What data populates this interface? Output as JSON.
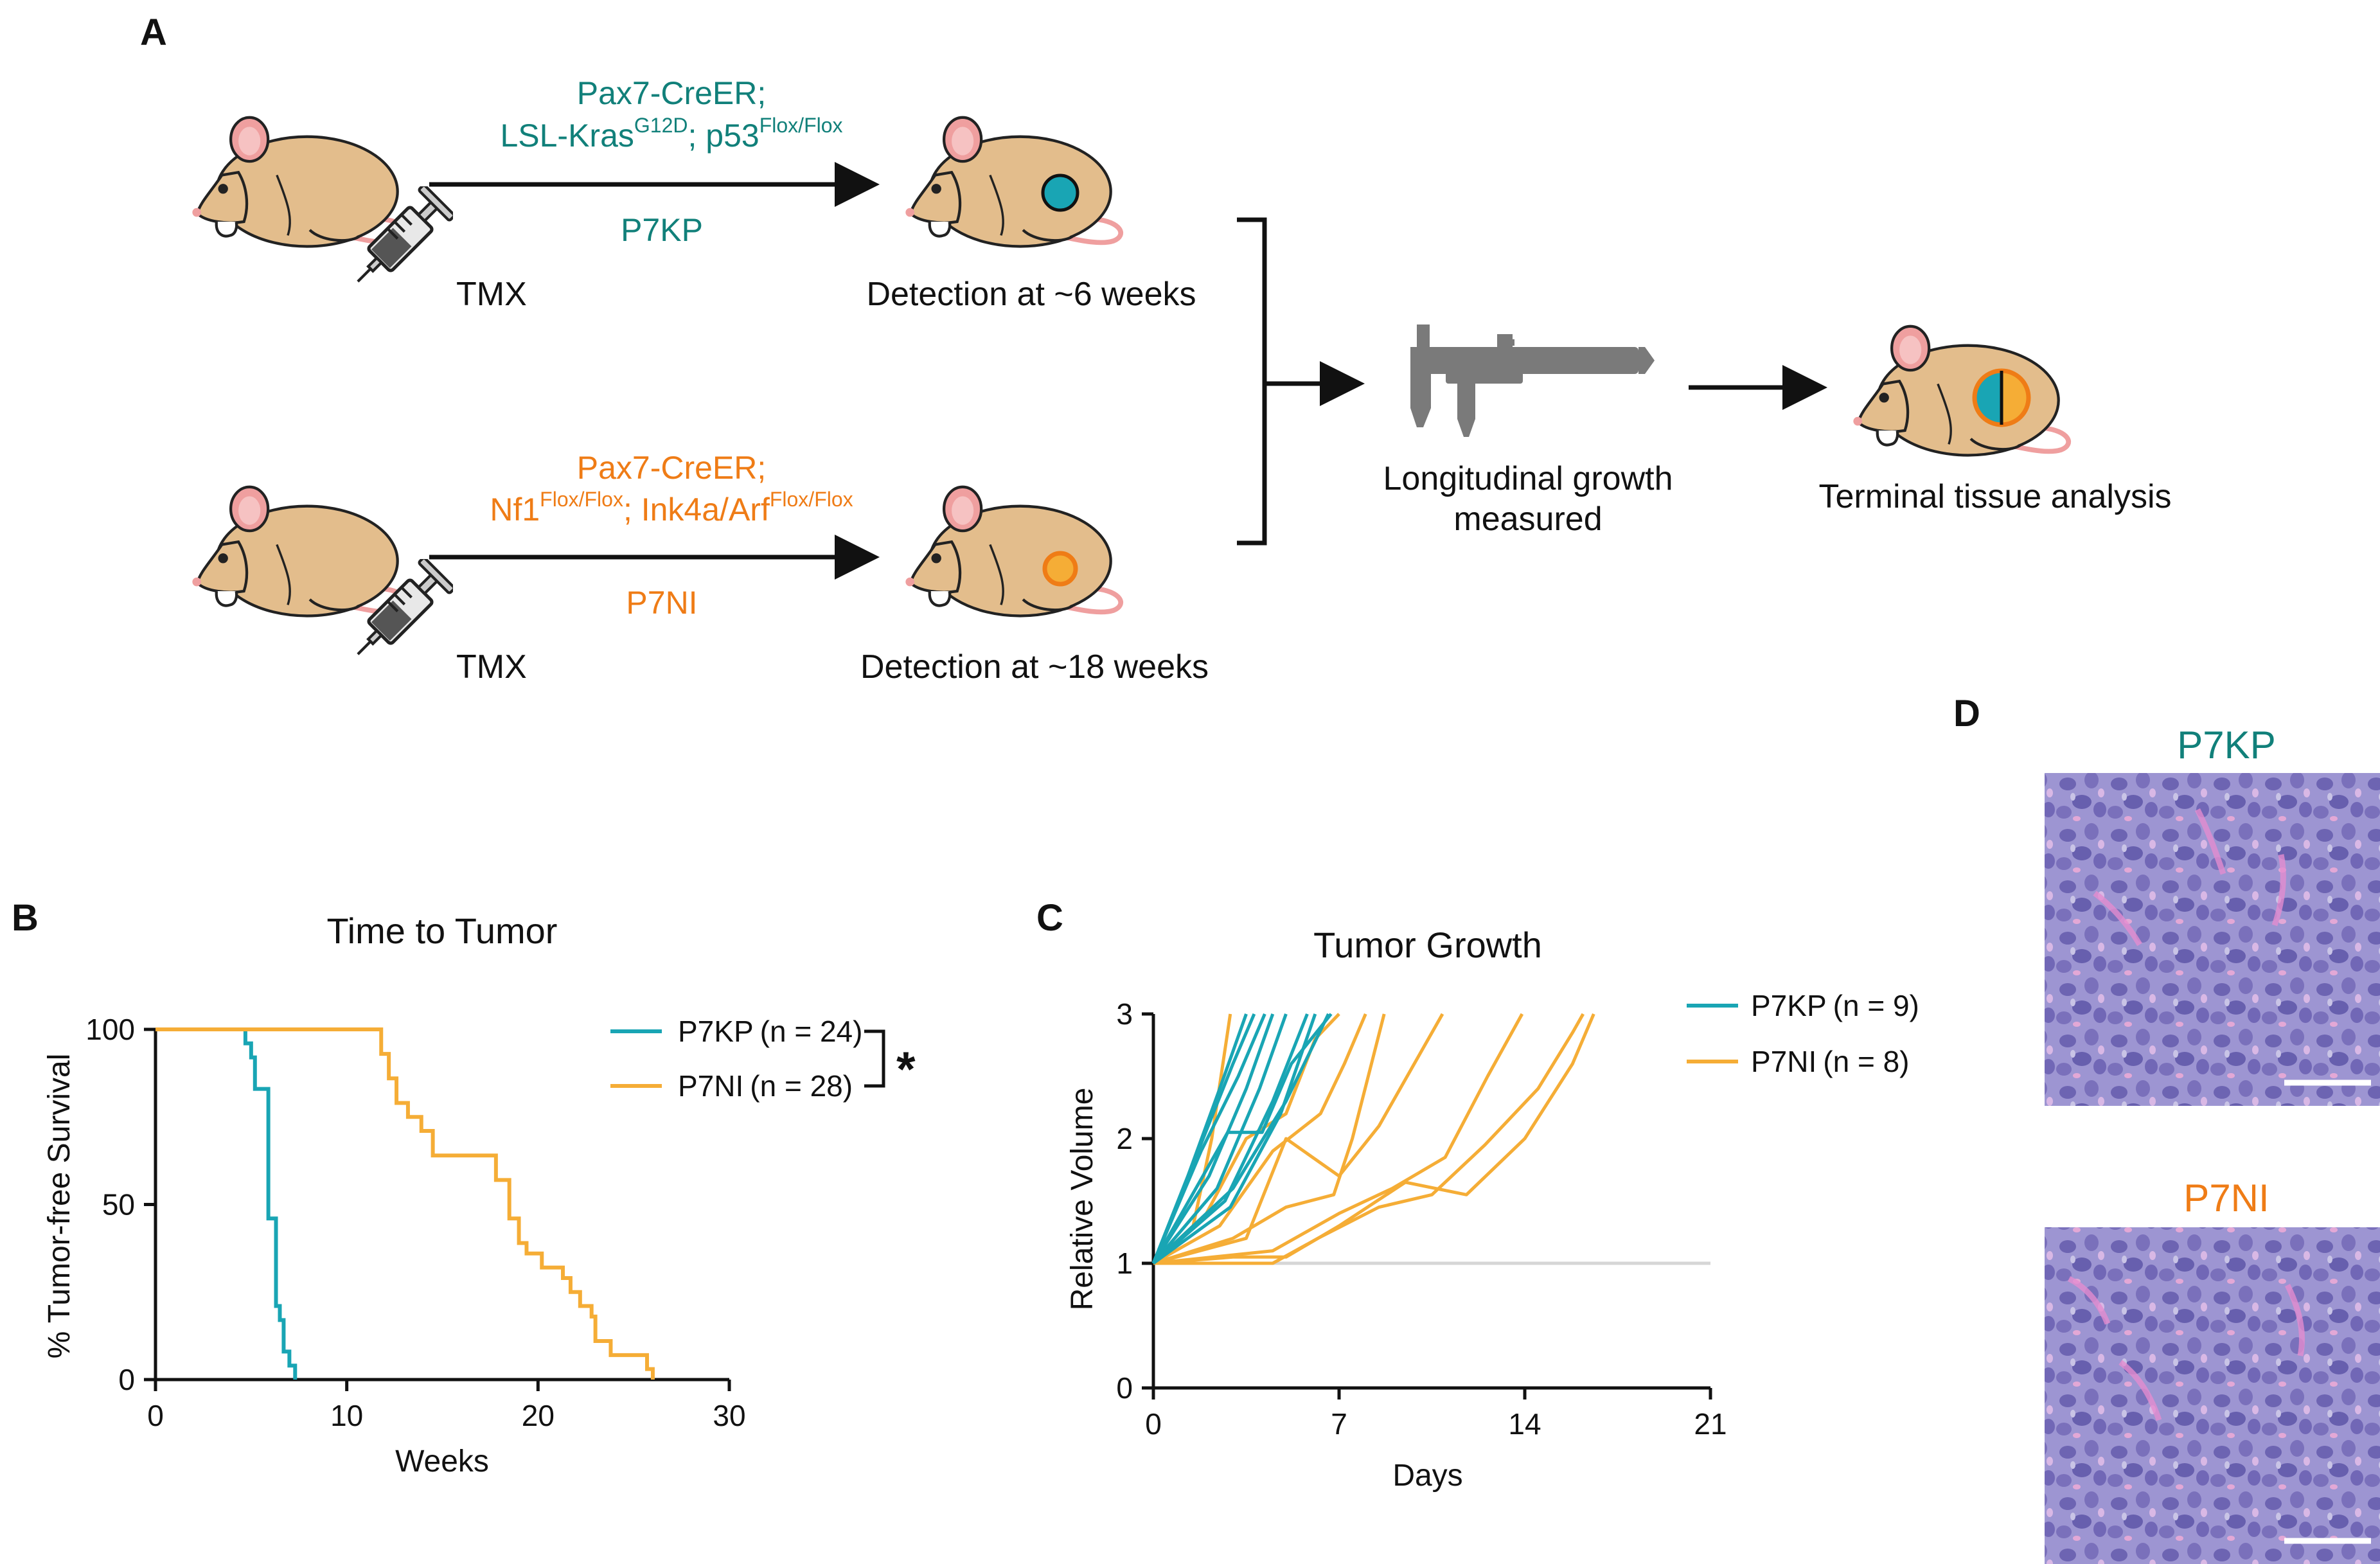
{
  "colors": {
    "p7kp": "#19a5b4",
    "p7kp_text": "#11807a",
    "p7ni": "#f5ad36",
    "p7ni_text": "#ef7c16",
    "mouse_body": "#e3bd8c",
    "mouse_pink": "#ef9f9f",
    "histology": "#8e88c9",
    "baseline": "#d6d6d6"
  },
  "panel_a": {
    "label": "A",
    "top_row": {
      "genotype_line1": "Pax7-CreER;",
      "genotype_line2_a": "LSL-Kras",
      "genotype_line2_sup1": "G12D",
      "genotype_line2_b": "; p53",
      "genotype_line2_sup2": "Flox/Flox",
      "model": "P7KP",
      "injection": "TMX",
      "detection": "Detection at ~6 weeks"
    },
    "bottom_row": {
      "genotype_line1": "Pax7-CreER;",
      "genotype_line2_a": "Nf1",
      "genotype_line2_sup1": "Flox/Flox",
      "genotype_line2_b": "; Ink4a/Arf",
      "genotype_line2_sup2": "Flox/Flox",
      "model": "P7NI",
      "injection": "TMX",
      "detection": "Detection at ~18 weeks"
    },
    "caliper_label_line1": "Longitudinal growth",
    "caliper_label_line2": "measured",
    "terminal_label": "Terminal tissue analysis",
    "icons": [
      "mouse-icon",
      "syringe-icon",
      "tumor-icon",
      "caliper-icon",
      "arrow-icon",
      "bracket-icon"
    ]
  },
  "chart_data": [
    {
      "panel": "B",
      "type": "line",
      "subtype": "kaplan-meier step",
      "title": "Time to Tumor",
      "xlabel": "Weeks",
      "ylabel": "% Tumor-free Survival",
      "xlim": [
        0,
        30
      ],
      "ylim": [
        0,
        100
      ],
      "xticks": [
        0,
        10,
        20,
        30
      ],
      "yticks": [
        0,
        50,
        100
      ],
      "significance": "*",
      "legend": "right",
      "series": [
        {
          "name": "P7KP",
          "n_label": "(n = 24)",
          "color": "#19a5b4",
          "times": [
            0,
            4.3,
            4.7,
            5.0,
            5.2,
            5.7,
            5.9,
            6.2,
            6.3,
            6.5,
            6.7,
            7.0,
            7.3
          ],
          "survival": [
            100,
            100,
            96,
            92,
            83,
            83,
            46,
            46,
            21,
            17,
            8,
            4,
            0
          ]
        },
        {
          "name": "P7NI",
          "n_label": "(n = 28)",
          "color": "#f5ad36",
          "times": [
            0,
            11.3,
            11.8,
            12.2,
            12.6,
            13.2,
            13.9,
            14.5,
            16.0,
            17.8,
            18.5,
            19.0,
            19.4,
            20.2,
            20.9,
            21.3,
            21.7,
            22.2,
            22.8,
            23.0,
            23.8,
            25.7,
            26.0
          ],
          "survival": [
            100,
            100,
            93,
            86,
            79,
            75,
            71,
            64,
            64,
            57,
            46,
            39,
            36,
            32,
            32,
            29,
            25,
            21,
            18,
            11,
            7,
            3,
            0
          ]
        }
      ]
    },
    {
      "panel": "C",
      "type": "line",
      "title": "Tumor Growth",
      "xlabel": "Days",
      "ylabel": "Relative Volume",
      "xlim": [
        0,
        21
      ],
      "ylim": [
        0,
        3
      ],
      "xticks": [
        0,
        7,
        14,
        21
      ],
      "yticks": [
        0,
        1,
        2,
        3
      ],
      "baseline": 1,
      "legend": "right",
      "series": [
        {
          "name": "P7KP",
          "n_label": "(n = 9)",
          "color": "#19a5b4",
          "lines": [
            [
              [
                0,
                1
              ],
              [
                1.3,
                1.7
              ],
              [
                2.5,
                2.4
              ],
              [
                3.5,
                3.0
              ]
            ],
            [
              [
                0,
                1
              ],
              [
                1.5,
                1.8
              ],
              [
                3,
                2.6
              ],
              [
                3.8,
                3.0
              ]
            ],
            [
              [
                0,
                1
              ],
              [
                1.8,
                1.9
              ],
              [
                3.2,
                2.5
              ],
              [
                4.2,
                3.0
              ]
            ],
            [
              [
                0,
                1
              ],
              [
                2.1,
                1.7
              ],
              [
                3.5,
                2.4
              ],
              [
                4.5,
                3.0
              ]
            ],
            [
              [
                0,
                1
              ],
              [
                2.4,
                1.6
              ],
              [
                4,
                2.4
              ],
              [
                5.0,
                3.0
              ]
            ],
            [
              [
                0,
                1
              ],
              [
                2.7,
                1.5
              ],
              [
                4.5,
                2.3
              ],
              [
                5.8,
                3.0
              ]
            ],
            [
              [
                0,
                1
              ],
              [
                2.9,
                1.45
              ],
              [
                4.8,
                2.2
              ],
              [
                6.1,
                3.0
              ]
            ],
            [
              [
                0,
                1
              ],
              [
                3.0,
                1.6
              ],
              [
                5,
                2.3
              ],
              [
                6.6,
                3.0
              ]
            ],
            [
              [
                0,
                1
              ],
              [
                2.8,
                2.05
              ],
              [
                4.1,
                2.05
              ],
              [
                5.2,
                2.6
              ],
              [
                6.7,
                3.0
              ]
            ]
          ]
        },
        {
          "name": "P7NI",
          "n_label": "(n = 8)",
          "color": "#f5ad36",
          "lines": [
            [
              [
                0,
                1
              ],
              [
                1.5,
                1.3
              ],
              [
                2.2,
                2.0
              ],
              [
                2.9,
                3.0
              ]
            ],
            [
              [
                0,
                1
              ],
              [
                2,
                1.4
              ],
              [
                3.5,
                2.0
              ],
              [
                5,
                2.2
              ],
              [
                6.1,
                2.8
              ],
              [
                7.0,
                3.0
              ]
            ],
            [
              [
                0,
                1
              ],
              [
                2.5,
                1.3
              ],
              [
                4.5,
                1.9
              ],
              [
                6.3,
                2.2
              ],
              [
                7.2,
                2.6
              ],
              [
                8.0,
                3.0
              ]
            ],
            [
              [
                0,
                1
              ],
              [
                3,
                1.2
              ],
              [
                5,
                1.45
              ],
              [
                6.8,
                1.55
              ],
              [
                7.5,
                2.0
              ],
              [
                8.7,
                3.0
              ]
            ],
            [
              [
                0,
                1
              ],
              [
                3.5,
                1.2
              ],
              [
                5,
                2.0
              ],
              [
                7,
                1.7
              ],
              [
                8.5,
                2.1
              ],
              [
                10.9,
                3.0
              ]
            ],
            [
              [
                0,
                1
              ],
              [
                4.5,
                1.1
              ],
              [
                7,
                1.4
              ],
              [
                9,
                1.6
              ],
              [
                11,
                1.85
              ],
              [
                12.6,
                2.5
              ],
              [
                13.9,
                3.0
              ]
            ],
            [
              [
                0,
                1
              ],
              [
                3,
                1.05
              ],
              [
                5,
                1.05
              ],
              [
                7,
                1.3
              ],
              [
                9.5,
                1.65
              ],
              [
                11.8,
                1.55
              ],
              [
                14,
                2.0
              ],
              [
                15.8,
                2.6
              ],
              [
                16.6,
                3.0
              ]
            ],
            [
              [
                0,
                1
              ],
              [
                2.3,
                1.0
              ],
              [
                4.5,
                1.0
              ],
              [
                6.2,
                1.2
              ],
              [
                8.5,
                1.45
              ],
              [
                10.5,
                1.55
              ],
              [
                12.5,
                1.95
              ],
              [
                14.5,
                2.4
              ],
              [
                15.8,
                2.85
              ],
              [
                16.2,
                3.0
              ]
            ]
          ]
        }
      ]
    }
  ],
  "panel_b": {
    "label": "B"
  },
  "panel_c": {
    "label": "C"
  },
  "panel_d": {
    "label": "D",
    "top_title": "P7KP",
    "bottom_title": "P7NI",
    "images": [
      "histology-p7kp-image",
      "histology-p7ni-image",
      "scale-bar"
    ]
  }
}
